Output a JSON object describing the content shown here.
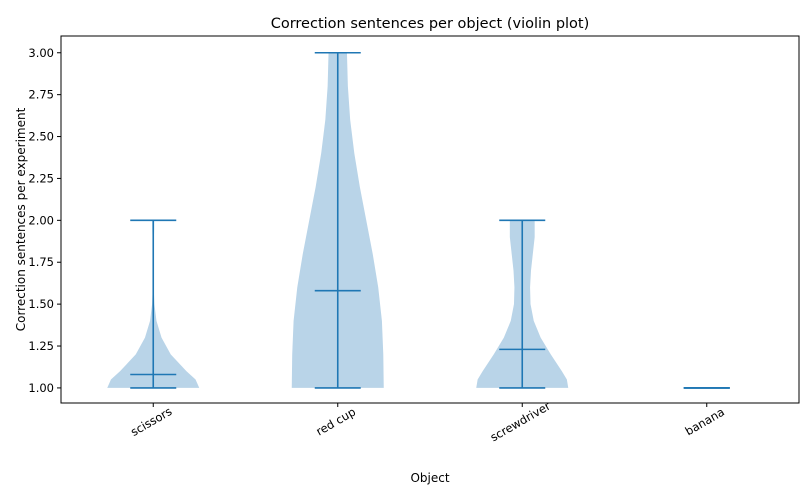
{
  "chart_data": {
    "type": "violin",
    "title": "Correction sentences per object (violin plot)",
    "xlabel": "Object",
    "ylabel": "Correction sentences per experiment",
    "categories": [
      "scissors",
      "red cup",
      "screwdriver",
      "banana"
    ],
    "ylim": [
      0.91,
      3.1
    ],
    "yticks": [
      1.0,
      1.25,
      1.5,
      1.75,
      2.0,
      2.25,
      2.5,
      2.75,
      3.0
    ],
    "ytick_labels": [
      "1.00",
      "1.25",
      "1.50",
      "1.75",
      "2.00",
      "2.25",
      "2.50",
      "2.75",
      "3.00"
    ],
    "x_tick_rotation": 30,
    "grid": false,
    "fill_color": "#b9d4e8",
    "line_color": "#1f77b4",
    "violins": [
      {
        "category": "scissors",
        "min": 1.0,
        "max": 2.0,
        "mean": 1.08,
        "profile": [
          [
            1.0,
            1.0
          ],
          [
            1.05,
            0.92
          ],
          [
            1.1,
            0.72
          ],
          [
            1.2,
            0.38
          ],
          [
            1.3,
            0.18
          ],
          [
            1.4,
            0.07
          ],
          [
            1.5,
            0.025
          ],
          [
            1.6,
            0.01
          ],
          [
            1.7,
            0.006
          ],
          [
            1.8,
            0.008
          ],
          [
            1.9,
            0.015
          ],
          [
            1.95,
            0.02
          ],
          [
            2.0,
            0.02
          ]
        ]
      },
      {
        "category": "red cup",
        "min": 1.0,
        "max": 3.0,
        "mean": 1.58,
        "profile": [
          [
            1.0,
            1.0
          ],
          [
            1.2,
            0.99
          ],
          [
            1.4,
            0.96
          ],
          [
            1.6,
            0.88
          ],
          [
            1.8,
            0.76
          ],
          [
            2.0,
            0.62
          ],
          [
            2.2,
            0.48
          ],
          [
            2.4,
            0.36
          ],
          [
            2.6,
            0.27
          ],
          [
            2.8,
            0.22
          ],
          [
            3.0,
            0.2
          ]
        ]
      },
      {
        "category": "screwdriver",
        "min": 1.0,
        "max": 2.0,
        "mean": 1.23,
        "profile": [
          [
            1.0,
            1.0
          ],
          [
            1.05,
            0.97
          ],
          [
            1.1,
            0.86
          ],
          [
            1.2,
            0.62
          ],
          [
            1.3,
            0.4
          ],
          [
            1.4,
            0.25
          ],
          [
            1.5,
            0.18
          ],
          [
            1.6,
            0.17
          ],
          [
            1.7,
            0.19
          ],
          [
            1.8,
            0.23
          ],
          [
            1.9,
            0.27
          ],
          [
            2.0,
            0.27
          ]
        ]
      },
      {
        "category": "banana",
        "min": 1.0,
        "max": 1.0,
        "mean": 1.0,
        "profile": []
      }
    ]
  }
}
